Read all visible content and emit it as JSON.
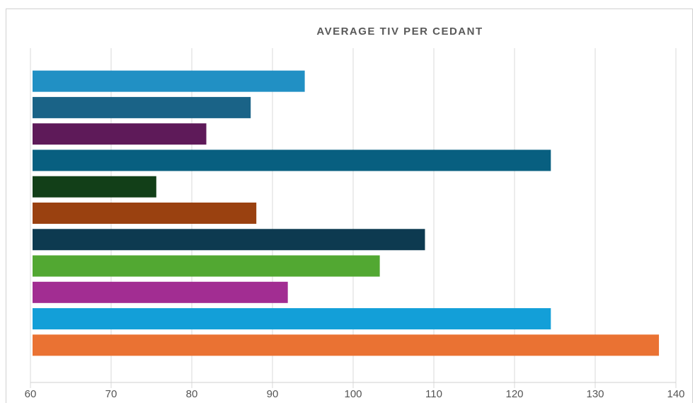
{
  "chart_data": {
    "type": "bar",
    "orientation": "horizontal",
    "title": "AVERAGE TIV PER CEDANT",
    "categories": [
      null,
      null,
      null,
      null,
      null,
      null,
      null,
      null,
      null,
      null,
      null
    ],
    "values": [
      94.0,
      87.3,
      81.8,
      124.5,
      75.6,
      88.0,
      108.9,
      103.3,
      91.9,
      124.5,
      137.9
    ],
    "colors": [
      "#2190c4",
      "#1a6387",
      "#5e1a59",
      "#085f80",
      "#123f18",
      "#9a4110",
      "#0d3a50",
      "#52a832",
      "#a22d92",
      "#139fd8",
      "#ea7233"
    ],
    "xlim": [
      60,
      140
    ],
    "xticks": [
      60,
      70,
      80,
      90,
      100,
      110,
      120,
      130,
      140
    ],
    "grid": true
  }
}
